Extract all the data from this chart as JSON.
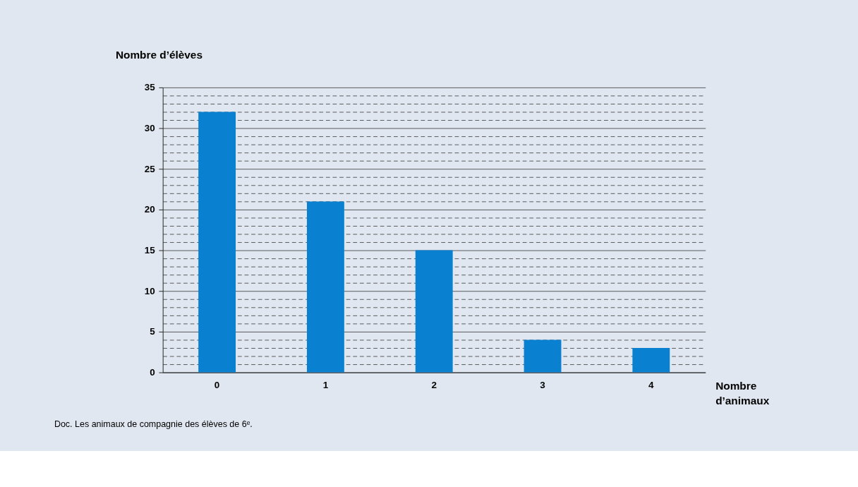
{
  "chart_data": {
    "type": "bar",
    "xlabel": "Nombre d’animaux",
    "ylabel": "Nombre d’élèves",
    "categories": [
      "0",
      "1",
      "2",
      "3",
      "4"
    ],
    "values": [
      32,
      21,
      15,
      4,
      3
    ],
    "color": "#0a80d0",
    "ylim": [
      0,
      35
    ],
    "yticks": [
      0,
      {
        "value": 1,
        "label": null
      },
      {
        "value": 2,
        "label": null
      },
      {
        "value": 3,
        "label": null
      },
      {
        "value": 4,
        "label": null
      },
      5,
      {
        "value": 6,
        "label": null
      },
      {
        "value": 7,
        "label": null
      },
      {
        "value": 8,
        "label": null
      },
      {
        "value": 9,
        "label": null
      },
      10,
      {
        "value": 11,
        "label": null
      },
      {
        "value": 12,
        "label": null
      },
      {
        "value": 13,
        "label": null
      },
      {
        "value": 14,
        "label": null
      },
      15,
      {
        "value": 16,
        "label": null
      },
      {
        "value": 17,
        "label": null
      },
      {
        "value": 18,
        "label": null
      },
      {
        "value": 19,
        "label": null
      },
      20,
      {
        "value": 21,
        "label": null
      },
      {
        "value": 22,
        "label": null
      },
      {
        "value": 23,
        "label": null
      },
      {
        "value": 24,
        "label": null
      },
      25,
      {
        "value": 26,
        "label": null
      },
      {
        "value": 27,
        "label": null
      },
      {
        "value": 28,
        "label": null
      },
      {
        "value": 29,
        "label": null
      },
      30,
      {
        "value": 31,
        "label": null
      },
      {
        "value": 32,
        "label": null
      },
      {
        "value": 33,
        "label": null
      },
      {
        "value": 34,
        "label": null
      },
      35
    ],
    "grid": "y",
    "annotations": [
      "Doc. Les animaux de compagnie des élèves de 6ᵉ."
    ]
  }
}
